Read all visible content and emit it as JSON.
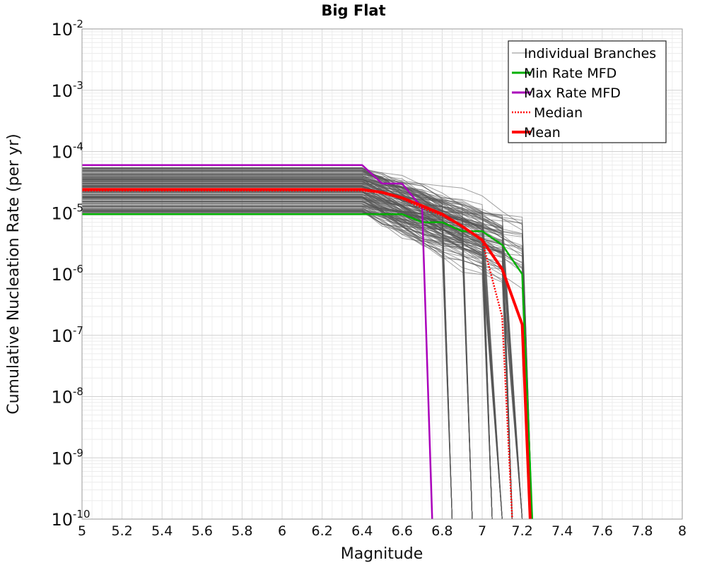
{
  "chart_data": {
    "type": "line",
    "title": "Big Flat",
    "xlabel": "Magnitude",
    "ylabel": "Cumulative Nucleation Rate (per yr)",
    "xlim": [
      5,
      8
    ],
    "ylim": [
      1e-10,
      0.01
    ],
    "yscale": "log",
    "x_ticks": [
      "5",
      "5.2",
      "5.4",
      "5.6",
      "5.8",
      "6",
      "6.2",
      "6.4",
      "6.6",
      "6.8",
      "7",
      "7.2",
      "7.4",
      "7.6",
      "7.8",
      "8"
    ],
    "y_ticks": [
      {
        "base": "10",
        "exp": "-2"
      },
      {
        "base": "10",
        "exp": "-3"
      },
      {
        "base": "10",
        "exp": "-4"
      },
      {
        "base": "10",
        "exp": "-5"
      },
      {
        "base": "10",
        "exp": "-6"
      },
      {
        "base": "10",
        "exp": "-7"
      },
      {
        "base": "10",
        "exp": "-8"
      },
      {
        "base": "10",
        "exp": "-9"
      },
      {
        "base": "10",
        "exp": "-10"
      }
    ],
    "grid": true,
    "legend_position": "top-right",
    "series": [
      {
        "name": "Min Rate MFD",
        "color": "#00b000",
        "style": "solid",
        "x": [
          5.0,
          6.4,
          6.6,
          6.7,
          6.8,
          6.9,
          7.0,
          7.1,
          7.2,
          7.25
        ],
        "y": [
          9.5e-06,
          9.5e-06,
          9.5e-06,
          7e-06,
          7e-06,
          5e-06,
          5e-06,
          3e-06,
          1e-06,
          1e-10
        ]
      },
      {
        "name": "Max Rate MFD",
        "color": "#aa00bb",
        "style": "solid",
        "x": [
          5.0,
          6.4,
          6.5,
          6.6,
          6.7,
          6.75
        ],
        "y": [
          6e-05,
          6e-05,
          3e-05,
          3e-05,
          1.2e-05,
          1e-10
        ]
      },
      {
        "name": "Median",
        "color": "#ff0000",
        "style": "dotted",
        "x": [
          5.0,
          6.4,
          6.5,
          6.6,
          6.7,
          6.8,
          6.9,
          7.0,
          7.1,
          7.15
        ],
        "y": [
          2.3e-05,
          2.3e-05,
          2.1e-05,
          1.7e-05,
          1.2e-05,
          9e-06,
          6e-06,
          3.5e-06,
          2e-07,
          1e-10
        ]
      },
      {
        "name": "Mean",
        "color": "#ff0000",
        "style": "solid",
        "x": [
          5.0,
          6.4,
          6.5,
          6.6,
          6.7,
          6.8,
          6.9,
          7.0,
          7.1,
          7.2,
          7.24
        ],
        "y": [
          2.4e-05,
          2.4e-05,
          2.15e-05,
          1.75e-05,
          1.3e-05,
          9.5e-06,
          6e-06,
          3.6e-06,
          1.2e-06,
          1.5e-07,
          1e-10
        ]
      }
    ],
    "branches": {
      "name": "Individual Branches",
      "color": "#555555",
      "count": 180,
      "plateau_range": [
        1e-05,
        5.5e-05
      ],
      "cutoff_magnitudes": [
        6.85,
        6.95,
        7.05,
        7.1,
        7.15,
        7.2,
        7.25
      ]
    },
    "legend": [
      "Individual Branches",
      "Min Rate MFD",
      "Max Rate MFD",
      "Median",
      "Mean"
    ]
  }
}
